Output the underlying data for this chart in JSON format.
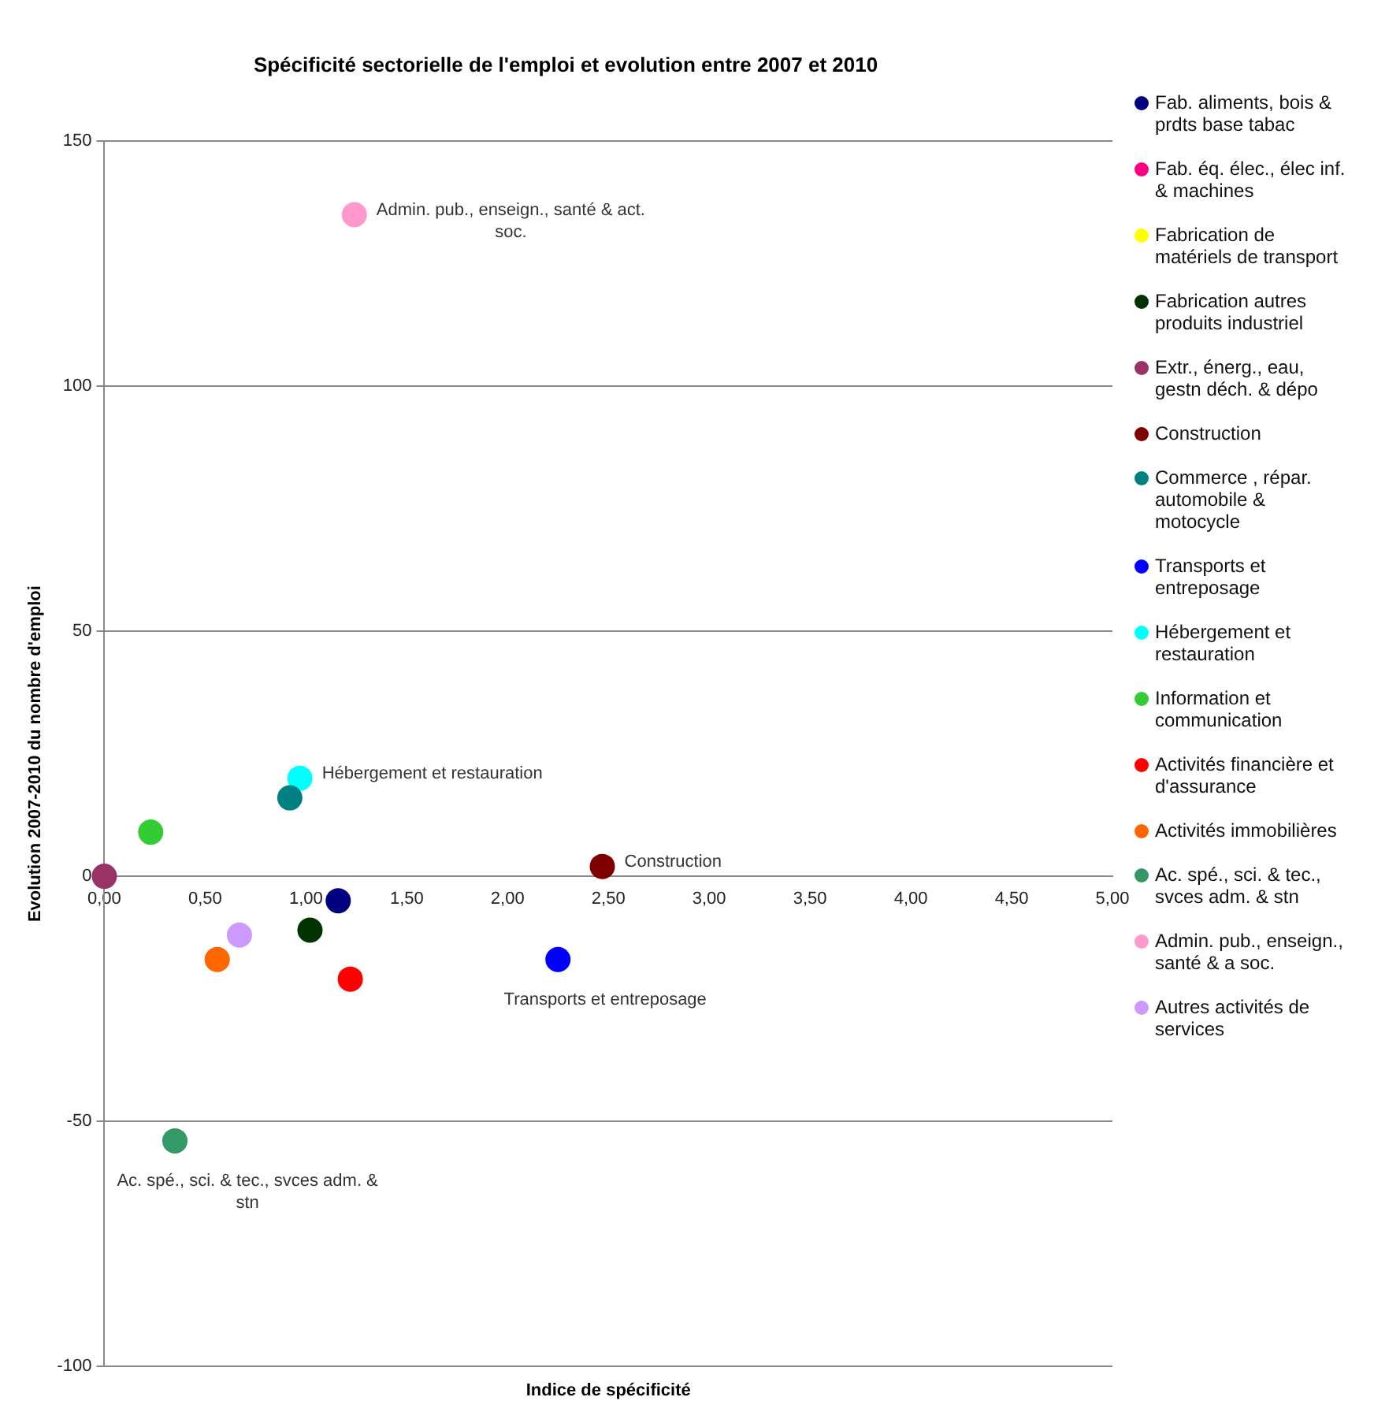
{
  "chart_data": {
    "type": "scatter",
    "title": "Spécificité sectorielle de l'emploi et evolution entre 2007 et 2010",
    "xlabel": "Indice de spécificité",
    "ylabel": "Evolution 2007-2010 du nombre d'emploi",
    "xlim": [
      0,
      5
    ],
    "ylim": [
      -100,
      150
    ],
    "xticks": [
      {
        "value": 0,
        "label": "0,00"
      },
      {
        "value": 0.5,
        "label": "0,50"
      },
      {
        "value": 1,
        "label": "1,00"
      },
      {
        "value": 1.5,
        "label": "1,50"
      },
      {
        "value": 2,
        "label": "2,00"
      },
      {
        "value": 2.5,
        "label": "2,50"
      },
      {
        "value": 3,
        "label": "3,00"
      },
      {
        "value": 3.5,
        "label": "3,50"
      },
      {
        "value": 4,
        "label": "4,00"
      },
      {
        "value": 4.5,
        "label": "4,50"
      },
      {
        "value": 5,
        "label": "5,00"
      }
    ],
    "yticks": [
      -100,
      -50,
      0,
      50,
      100,
      150
    ],
    "grid": "y",
    "legend": "right",
    "marker": "circle",
    "series": [
      {
        "name": "Fab. aliments, bois & prdts base tabac",
        "color": "#000080",
        "x": [
          1.16
        ],
        "values": [
          -5
        ]
      },
      {
        "name": "Fab. éq. élec., élec inf. & machines",
        "color": "#ff0080",
        "x": [
          null
        ],
        "values": [
          null
        ]
      },
      {
        "name": "Fabrication de matériels de transport",
        "color": "#ffff00",
        "x": [
          null
        ],
        "values": [
          null
        ]
      },
      {
        "name": "Fabrication autres produits industriel",
        "color": "#003300",
        "x": [
          1.02
        ],
        "values": [
          -11
        ]
      },
      {
        "name": "Extr., énerg., eau, gestn déch. & dépo",
        "color": "#993366",
        "x": [
          0
        ],
        "values": [
          0
        ]
      },
      {
        "name": "Construction",
        "color": "#800000",
        "x": [
          2.47
        ],
        "values": [
          2
        ]
      },
      {
        "name": "Commerce , répar. automobile & motocycle",
        "color": "#008080",
        "x": [
          0.92
        ],
        "values": [
          16
        ]
      },
      {
        "name": "Transports et entreposage",
        "color": "#0000ff",
        "x": [
          2.25
        ],
        "values": [
          -17
        ]
      },
      {
        "name": "Hébergement et restauration",
        "color": "#00ffff",
        "x": [
          0.97
        ],
        "values": [
          20
        ]
      },
      {
        "name": "Information et communication",
        "color": "#33cc33",
        "x": [
          0.23
        ],
        "values": [
          9
        ]
      },
      {
        "name": "Activités financière et d'assurance",
        "color": "#ff0000",
        "x": [
          1.22
        ],
        "values": [
          -21
        ]
      },
      {
        "name": "Activités immobilières",
        "color": "#ff6600",
        "x": [
          0.56
        ],
        "values": [
          -17
        ]
      },
      {
        "name": "Ac. spé., sci. & tec., svces adm. & stn",
        "color": "#339966",
        "x": [
          0.35
        ],
        "values": [
          -54
        ]
      },
      {
        "name": "Admin. pub., enseign., santé & a soc.",
        "color": "#ff99cc",
        "x": [
          1.24
        ],
        "values": [
          135
        ]
      },
      {
        "name": "Autres activités de services",
        "color": "#cc99ff",
        "x": [
          0.67
        ],
        "values": [
          -12
        ]
      }
    ],
    "annotations": [
      {
        "text": "Admin. pub., enseign., santé & act. soc.",
        "x": 1.24,
        "y": 135
      },
      {
        "text": "Hébergement et restauration",
        "x": 0.97,
        "y": 20
      },
      {
        "text": "Construction",
        "x": 2.47,
        "y": 2
      },
      {
        "text": "Transports et entreposage",
        "x": 2.25,
        "y": -17
      },
      {
        "text": "Ac. spé., sci. & tec., svces adm. & stn",
        "x": 0.35,
        "y": -54
      }
    ]
  }
}
